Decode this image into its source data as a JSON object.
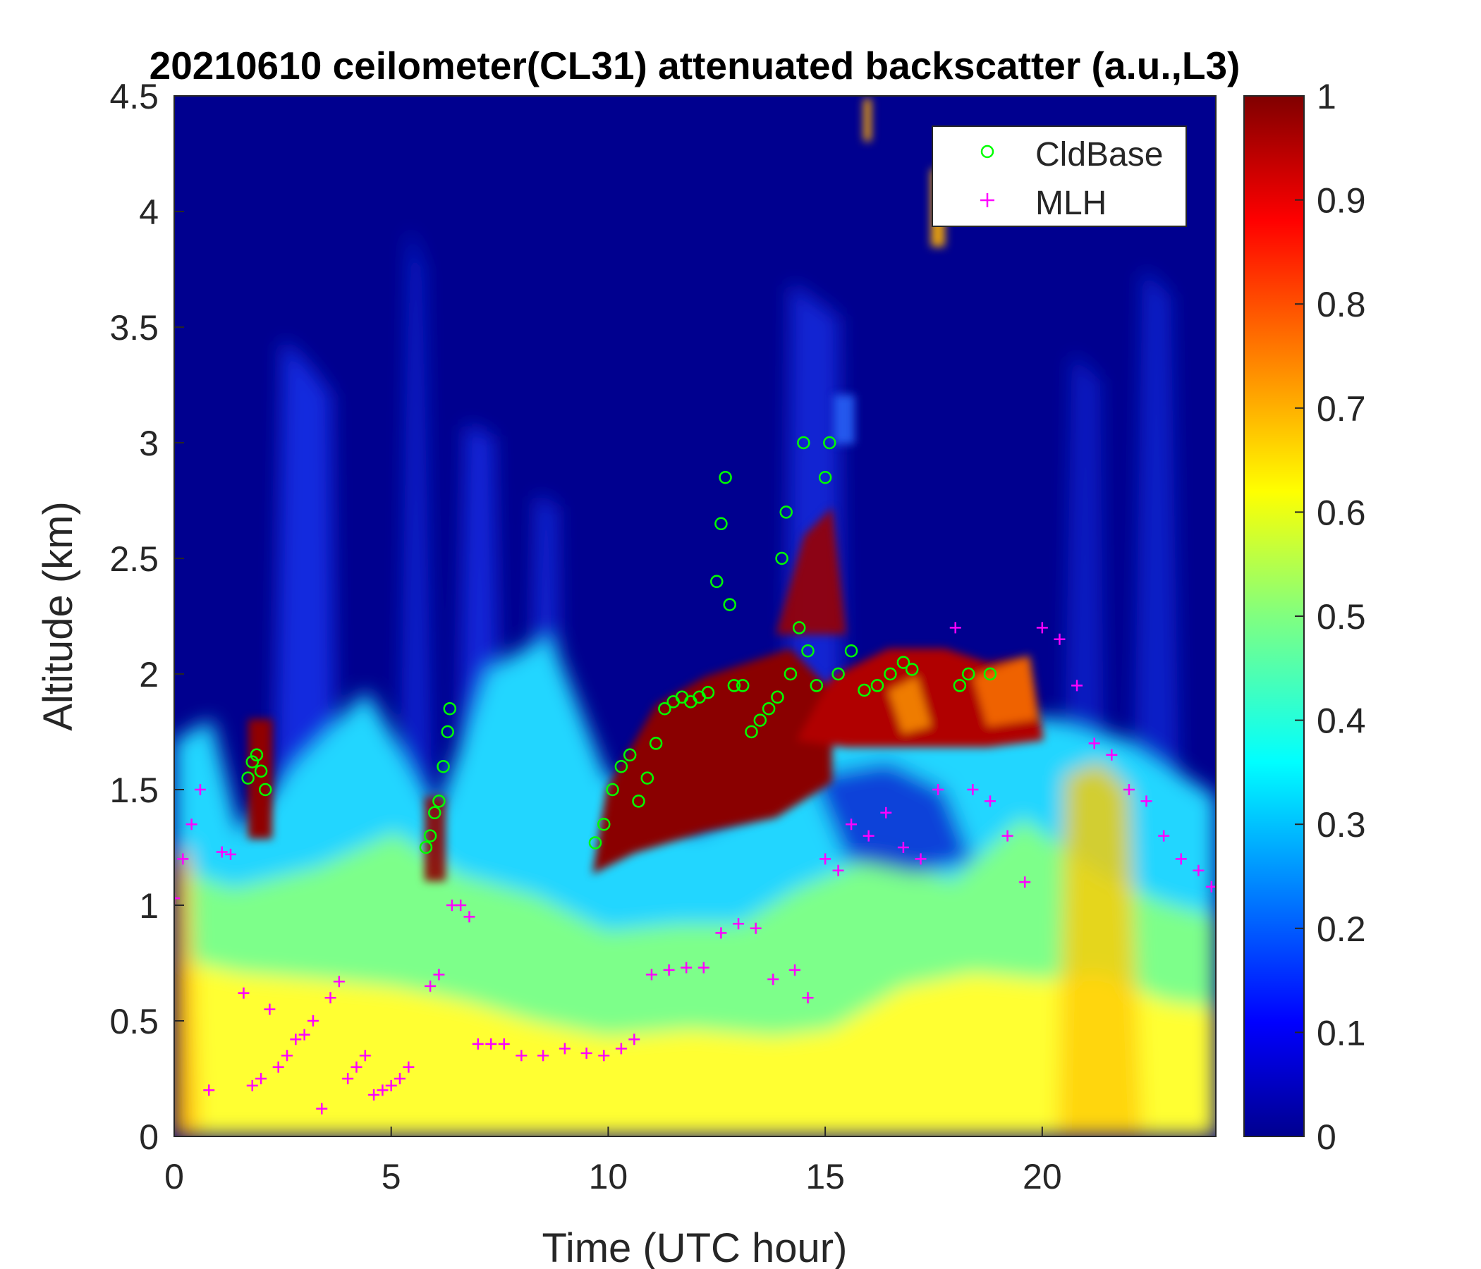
{
  "chart_data": {
    "type": "heatmap",
    "title": "20210610 ceilometer(CL31) attenuated backscatter (a.u.,L3)",
    "xlabel": "Time (UTC hour)",
    "ylabel": "Altitude (km)",
    "xlim": [
      0,
      24
    ],
    "ylim": [
      0,
      4.5
    ],
    "x_ticks": [
      0,
      5,
      10,
      15,
      20
    ],
    "y_ticks": [
      0,
      0.5,
      1,
      1.5,
      2,
      2.5,
      3,
      3.5,
      4,
      4.5
    ],
    "colorbar": {
      "range": [
        0,
        1
      ],
      "ticks": [
        0,
        0.1,
        0.2,
        0.3,
        0.4,
        0.5,
        0.6,
        0.7,
        0.8,
        0.9,
        1
      ],
      "colormap": "jet"
    },
    "legend": {
      "position": "top-right",
      "entries": [
        {
          "name": "CldBase",
          "marker": "circle",
          "color": "#00ff00"
        },
        {
          "name": "MLH",
          "marker": "plus",
          "color": "#ff00ff"
        }
      ]
    },
    "series": [
      {
        "name": "CldBase",
        "x": [
          1.7,
          1.8,
          1.9,
          2.0,
          2.1,
          5.8,
          5.9,
          6.0,
          6.1,
          6.2,
          6.3,
          6.35,
          9.7,
          9.9,
          10.1,
          10.3,
          10.5,
          10.7,
          10.9,
          11.1,
          11.3,
          11.5,
          11.7,
          11.9,
          12.1,
          12.3,
          12.5,
          12.6,
          12.7,
          12.8,
          12.9,
          13.1,
          13.3,
          13.5,
          13.7,
          13.9,
          14.0,
          14.1,
          14.2,
          14.4,
          14.5,
          14.6,
          14.8,
          15.0,
          15.1,
          15.3,
          15.6,
          15.9,
          16.2,
          16.5,
          16.8,
          17.0,
          18.1,
          18.3,
          18.8
        ],
        "y": [
          1.55,
          1.62,
          1.65,
          1.58,
          1.5,
          1.25,
          1.3,
          1.4,
          1.45,
          1.6,
          1.75,
          1.85,
          1.27,
          1.35,
          1.5,
          1.6,
          1.65,
          1.45,
          1.55,
          1.7,
          1.85,
          1.88,
          1.9,
          1.88,
          1.9,
          1.92,
          2.4,
          2.65,
          2.85,
          2.3,
          1.95,
          1.95,
          1.75,
          1.8,
          1.85,
          1.9,
          2.5,
          2.7,
          2.0,
          2.2,
          3.0,
          2.1,
          1.95,
          2.85,
          3.0,
          2.0,
          2.1,
          1.93,
          1.95,
          2.0,
          2.05,
          2.02,
          1.95,
          2.0,
          2.0
        ]
      },
      {
        "name": "MLH",
        "x": [
          0.0,
          0.2,
          0.4,
          0.6,
          0.8,
          1.1,
          1.3,
          1.6,
          1.8,
          2.0,
          2.2,
          2.4,
          2.6,
          2.8,
          3.0,
          3.2,
          3.4,
          3.6,
          3.8,
          4.0,
          4.2,
          4.4,
          4.6,
          4.8,
          5.0,
          5.2,
          5.4,
          5.9,
          6.1,
          6.4,
          6.6,
          6.8,
          7.0,
          7.3,
          7.6,
          8.0,
          8.5,
          9.0,
          9.5,
          9.9,
          10.3,
          10.6,
          11.0,
          11.4,
          11.8,
          12.2,
          12.6,
          13.0,
          13.4,
          13.8,
          14.3,
          14.6,
          15.0,
          15.3,
          15.6,
          16.0,
          16.4,
          16.8,
          17.2,
          17.6,
          18.0,
          18.4,
          18.8,
          19.2,
          19.6,
          20.0,
          20.4,
          20.8,
          21.2,
          21.6,
          22.0,
          22.4,
          22.8,
          23.2,
          23.6,
          23.9
        ],
        "y": [
          1.03,
          1.2,
          1.35,
          1.5,
          0.2,
          1.23,
          1.22,
          0.62,
          0.22,
          0.25,
          0.55,
          0.3,
          0.35,
          0.42,
          0.44,
          0.5,
          0.12,
          0.6,
          0.67,
          0.25,
          0.3,
          0.35,
          0.18,
          0.2,
          0.22,
          0.25,
          0.3,
          0.65,
          0.7,
          1.0,
          1.0,
          0.95,
          0.4,
          0.4,
          0.4,
          0.35,
          0.35,
          0.38,
          0.36,
          0.35,
          0.38,
          0.42,
          0.7,
          0.72,
          0.73,
          0.73,
          0.88,
          0.92,
          0.9,
          0.68,
          0.72,
          0.6,
          1.2,
          1.15,
          1.35,
          1.3,
          1.4,
          1.25,
          1.2,
          1.5,
          2.2,
          1.5,
          1.45,
          1.3,
          1.1,
          2.2,
          2.15,
          1.95,
          1.7,
          1.65,
          1.5,
          1.45,
          1.3,
          1.2,
          1.15,
          1.08
        ]
      }
    ]
  }
}
